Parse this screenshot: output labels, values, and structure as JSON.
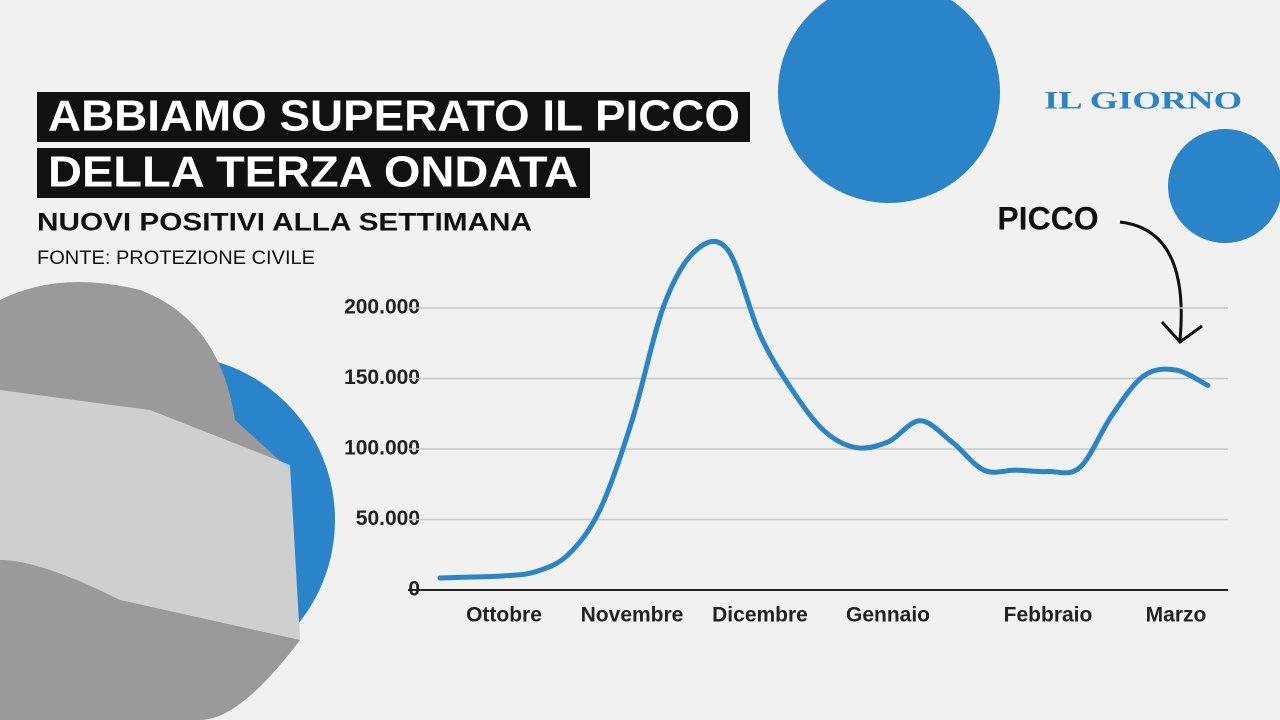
{
  "chart_data": {
    "type": "line",
    "title": [
      "ABBIAMO SUPERATO IL PICCO",
      "DELLA TERZA ONDATA"
    ],
    "subtitle": "NUOVI POSITIVI ALLA SETTIMANA",
    "source": "FONTE: PROTEZIONE CIVILE",
    "brand": "IL GIORNO",
    "annotation": "PICCO",
    "categories": [
      null,
      null,
      "Ottobre",
      null,
      null,
      null,
      "Novembre",
      null,
      null,
      null,
      "Dicembre",
      null,
      null,
      null,
      "Gennaio",
      null,
      null,
      null,
      null,
      "Febbraio",
      null,
      null,
      null,
      "Marzo",
      null
    ],
    "values": [
      8500,
      9200,
      10000,
      13000,
      25000,
      57000,
      120000,
      202000,
      241000,
      241000,
      181000,
      142000,
      113000,
      101000,
      105000,
      120000,
      105000,
      85000,
      85000,
      84000,
      87000,
      124000,
      152000,
      156000,
      145000
    ],
    "color": "#2a84c9",
    "ylim": [
      0,
      250000
    ],
    "yticks": [
      0,
      {
        "value": 50000,
        "label": "50.000"
      },
      {
        "value": 100000,
        "label": "100.000"
      },
      {
        "value": 150000,
        "label": "150.000"
      },
      {
        "value": 200000,
        "label": "200.000"
      }
    ],
    "grid": true
  }
}
